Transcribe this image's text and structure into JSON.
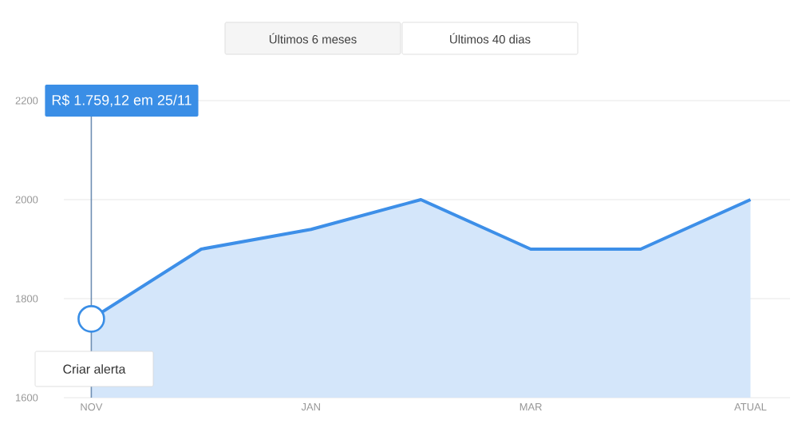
{
  "chart_data": {
    "type": "area",
    "categories": [
      "NOV",
      null,
      "JAN",
      null,
      "MAR",
      null,
      "ATUAL"
    ],
    "series": [
      {
        "color": "#3d8fe8",
        "values": [
          1759.12,
          1900,
          1940,
          2000,
          1900,
          1900,
          2000
        ]
      }
    ],
    "ylim": [
      1600,
      2200
    ],
    "yticks": [
      1600,
      1800,
      2000,
      2200
    ],
    "grid": "y",
    "ref_lines": [
      {
        "axis": "x",
        "value": "NOV",
        "color": "#6f8fb3"
      }
    ],
    "annotations": [
      "Últimos 6 meses",
      "Últimos 40 dias",
      "R$ 1.759,12 em 25/11",
      "Criar alerta"
    ]
  }
}
